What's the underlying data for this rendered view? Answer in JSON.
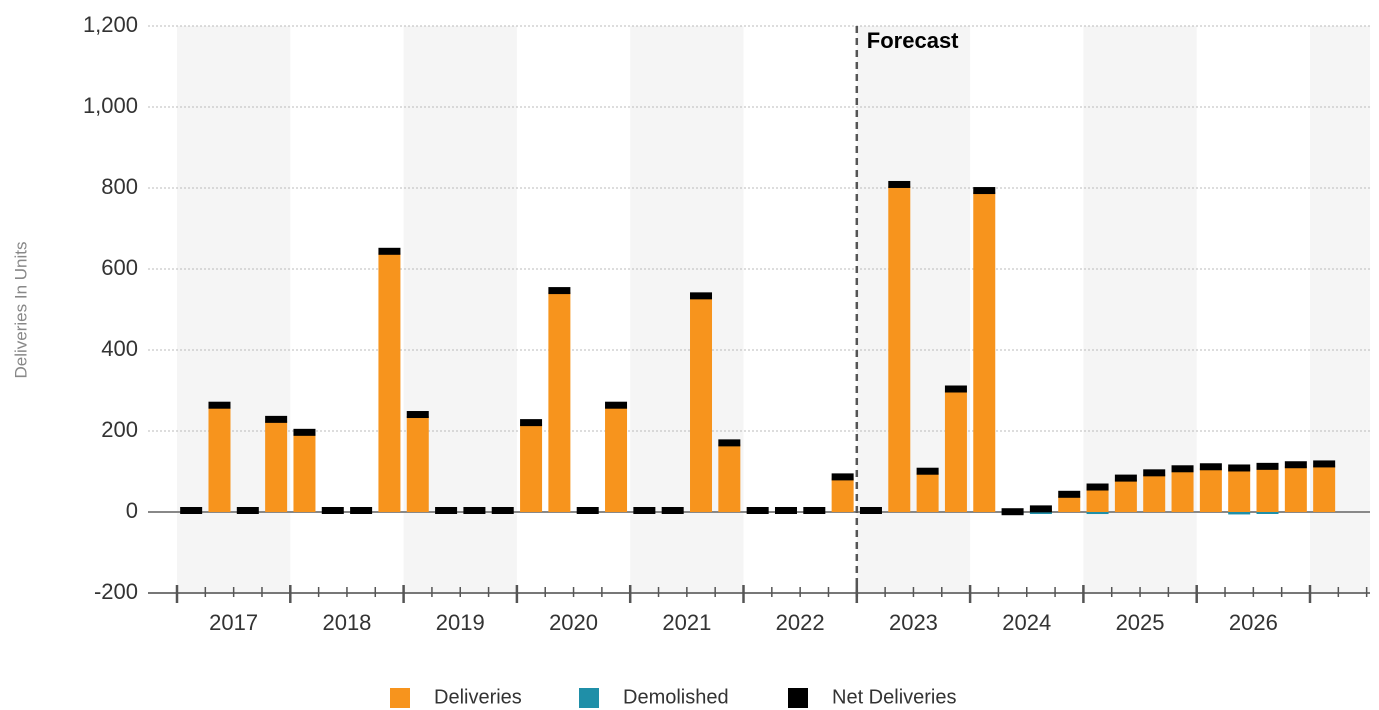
{
  "chart_data": {
    "type": "bar",
    "y_label": "Deliveries In Units",
    "categories": [
      null,
      null,
      null,
      null,
      null,
      null,
      null,
      null,
      null,
      null,
      null,
      null,
      null,
      null,
      null,
      null,
      null,
      null,
      null,
      null,
      null,
      null,
      null,
      null,
      null,
      null,
      null,
      null,
      null,
      null,
      null,
      null,
      null,
      null,
      null,
      null,
      null,
      null,
      null,
      null,
      null
    ],
    "year_labels": [
      "2017",
      "2018",
      "2019",
      "2020",
      "2021",
      "2022",
      "2023",
      "2024",
      "2025",
      "2026"
    ],
    "series": [
      {
        "name": "Deliveries",
        "color": "#f7941d",
        "values": [
          0,
          260,
          0,
          225,
          193,
          0,
          0,
          640,
          237,
          0,
          0,
          0,
          217,
          543,
          0,
          260,
          0,
          0,
          530,
          167,
          0,
          0,
          0,
          83,
          0,
          805,
          97,
          300,
          790,
          0,
          8,
          40,
          63,
          80,
          93,
          103,
          108,
          111,
          113,
          113,
          115
        ]
      },
      {
        "name": "Demolished",
        "color": "#1f8fa8",
        "values": [
          0,
          0,
          0,
          0,
          0,
          0,
          0,
          0,
          0,
          0,
          0,
          0,
          0,
          0,
          0,
          0,
          0,
          0,
          0,
          0,
          0,
          0,
          0,
          0,
          0,
          0,
          0,
          0,
          0,
          -3,
          -4,
          0,
          -5,
          0,
          0,
          0,
          0,
          -6,
          -4,
          0,
          0
        ]
      },
      {
        "name": "Net Deliveries",
        "color": "#000000",
        "values": [
          0,
          260,
          0,
          225,
          193,
          0,
          0,
          640,
          237,
          0,
          0,
          0,
          217,
          543,
          0,
          260,
          0,
          0,
          530,
          167,
          0,
          0,
          0,
          83,
          0,
          805,
          97,
          300,
          790,
          -3,
          4,
          40,
          58,
          80,
          93,
          103,
          108,
          105,
          109,
          113,
          115
        ]
      }
    ],
    "annotation": {
      "text": "Forecast",
      "category_index": 24
    },
    "ylim": [
      -200,
      1200
    ],
    "yticks": [
      -200,
      0,
      200,
      400,
      600,
      800,
      {
        "value": 1000,
        "label": "1,000"
      },
      {
        "value": 1200,
        "label": "1,200"
      }
    ],
    "grid": true
  }
}
